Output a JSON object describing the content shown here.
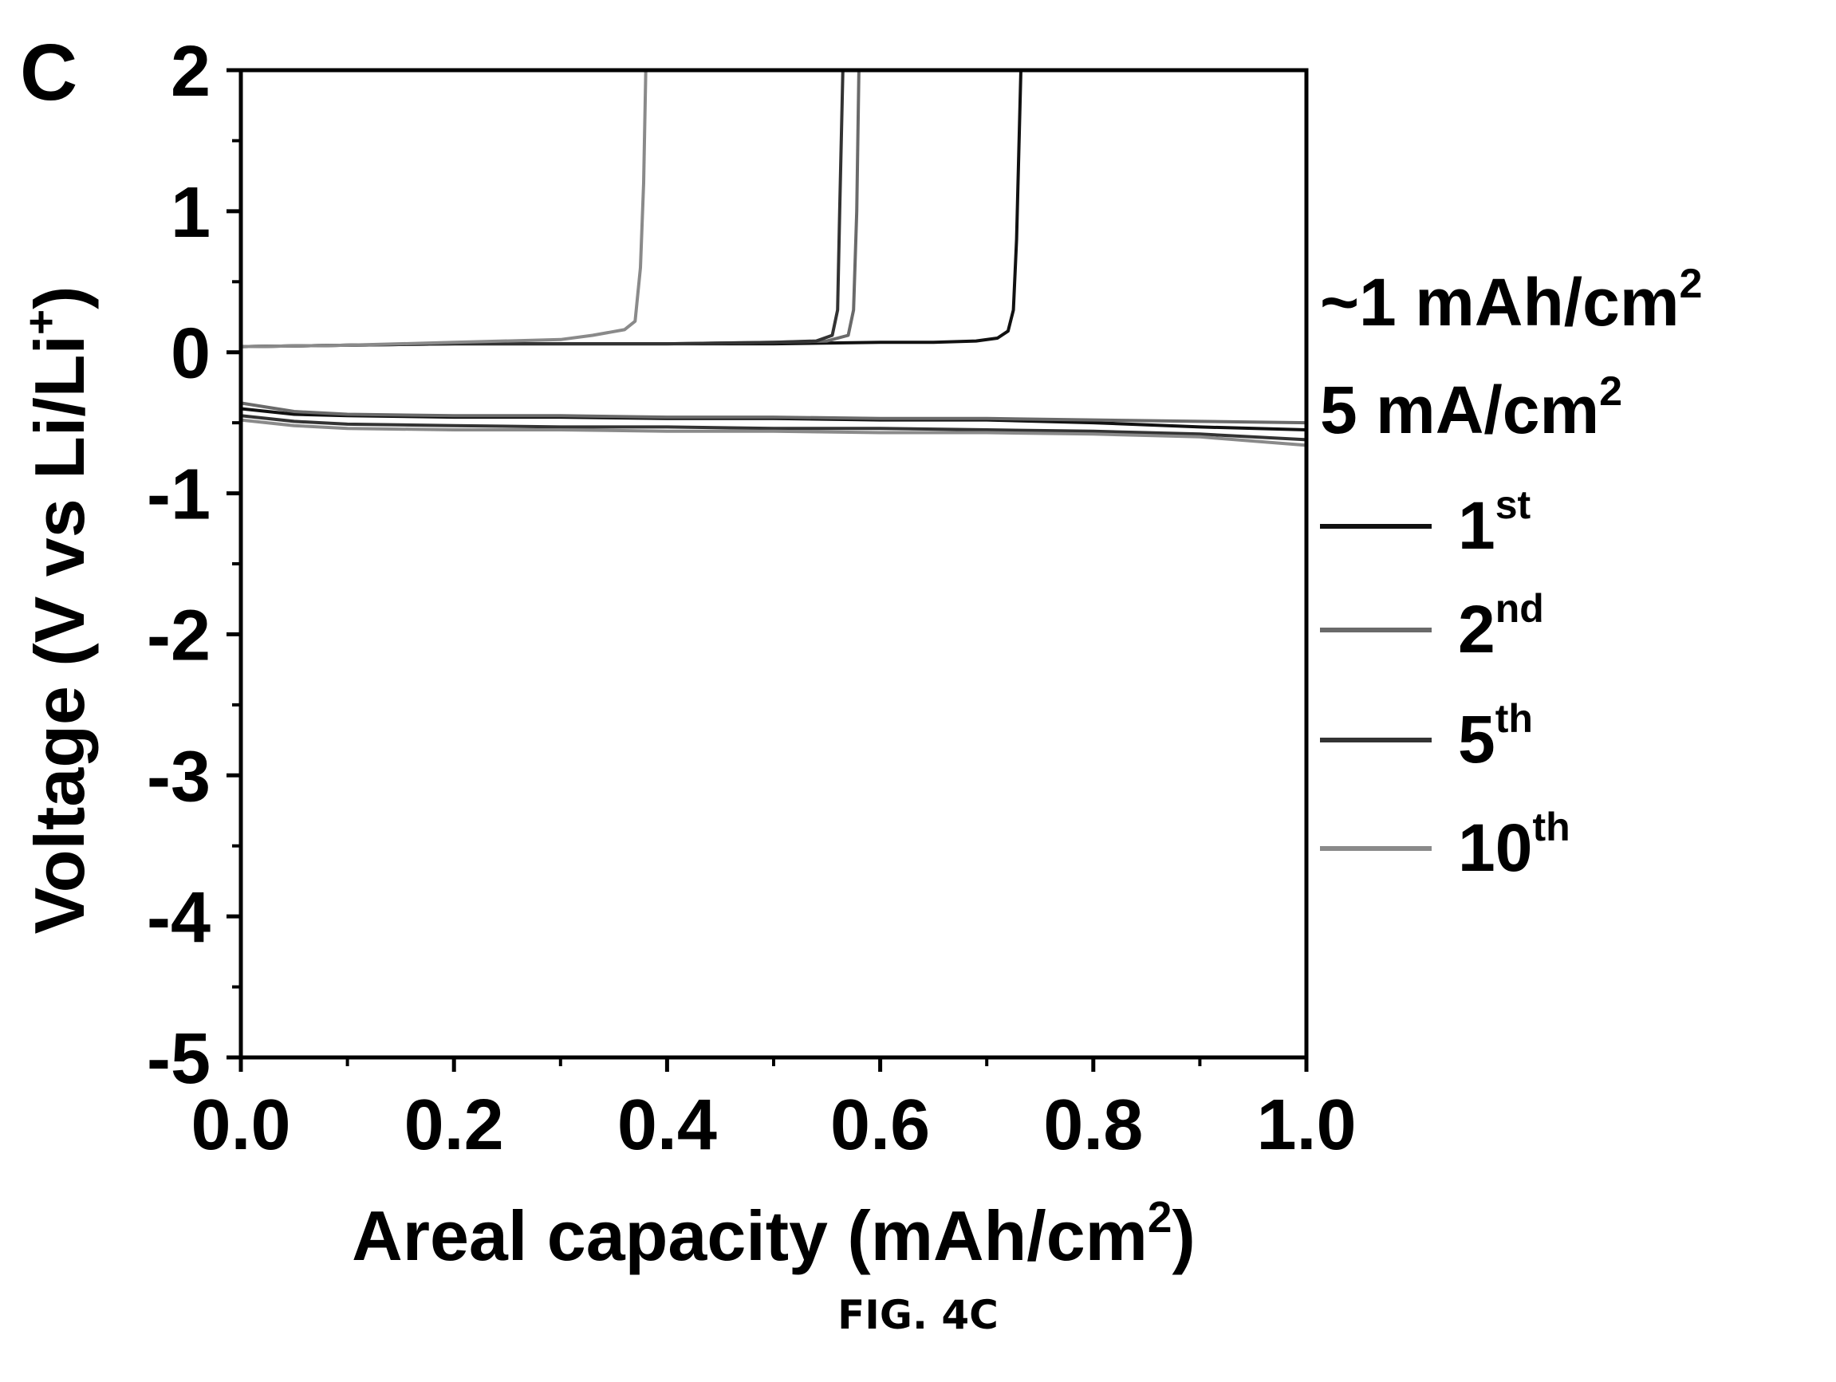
{
  "panel_label": "C",
  "figure_caption": "FIG. 4C",
  "annotations": {
    "capacity_value": "~1 mAh/cm",
    "capacity_sup": "2",
    "current_value": "5 mA/cm",
    "current_sup": "2"
  },
  "chart_data": {
    "type": "line",
    "title": "",
    "xlabel": "Areal capacity (mAh/cm",
    "xlabel_sup": "2",
    "xlabel_tail": ")",
    "ylabel": "Voltage (V vs Li/Li",
    "ylabel_sup": "+",
    "ylabel_tail": ")",
    "xlim": [
      0.0,
      1.0
    ],
    "ylim": [
      -5,
      2
    ],
    "xticks": [
      "0.0",
      "0.2",
      "0.4",
      "0.6",
      "0.8",
      "1.0"
    ],
    "yticks": [
      "2",
      "1",
      "0",
      "-1",
      "-2",
      "-3",
      "-4",
      "-5"
    ],
    "grid": false,
    "legend_position": "right",
    "series": [
      {
        "name": "1",
        "sup": "st",
        "color": "#111111",
        "discharge": [
          [
            0.0,
            -0.4
          ],
          [
            0.05,
            -0.44
          ],
          [
            0.1,
            -0.45
          ],
          [
            0.2,
            -0.46
          ],
          [
            0.3,
            -0.46
          ],
          [
            0.4,
            -0.47
          ],
          [
            0.5,
            -0.47
          ],
          [
            0.6,
            -0.48
          ],
          [
            0.7,
            -0.48
          ],
          [
            0.8,
            -0.5
          ],
          [
            0.9,
            -0.53
          ],
          [
            1.0,
            -0.55
          ]
        ],
        "charge": [
          [
            0.0,
            0.04
          ],
          [
            0.1,
            0.05
          ],
          [
            0.2,
            0.06
          ],
          [
            0.3,
            0.06
          ],
          [
            0.4,
            0.06
          ],
          [
            0.5,
            0.06
          ],
          [
            0.6,
            0.07
          ],
          [
            0.65,
            0.07
          ],
          [
            0.69,
            0.08
          ],
          [
            0.71,
            0.1
          ],
          [
            0.72,
            0.15
          ],
          [
            0.725,
            0.3
          ],
          [
            0.728,
            0.8
          ],
          [
            0.73,
            1.4
          ],
          [
            0.732,
            2.0
          ]
        ]
      },
      {
        "name": "2",
        "sup": "nd",
        "color": "#6a6a6a",
        "discharge": [
          [
            0.0,
            -0.36
          ],
          [
            0.05,
            -0.42
          ],
          [
            0.1,
            -0.44
          ],
          [
            0.2,
            -0.45
          ],
          [
            0.3,
            -0.45
          ],
          [
            0.4,
            -0.46
          ],
          [
            0.5,
            -0.46
          ],
          [
            0.6,
            -0.47
          ],
          [
            0.7,
            -0.47
          ],
          [
            0.8,
            -0.48
          ],
          [
            0.9,
            -0.49
          ],
          [
            1.0,
            -0.5
          ]
        ],
        "charge": [
          [
            0.0,
            0.04
          ],
          [
            0.1,
            0.05
          ],
          [
            0.2,
            0.06
          ],
          [
            0.3,
            0.06
          ],
          [
            0.4,
            0.06
          ],
          [
            0.5,
            0.07
          ],
          [
            0.55,
            0.08
          ],
          [
            0.57,
            0.12
          ],
          [
            0.575,
            0.3
          ],
          [
            0.578,
            1.0
          ],
          [
            0.58,
            2.0
          ]
        ]
      },
      {
        "name": "5",
        "sup": "th",
        "color": "#333333",
        "discharge": [
          [
            0.0,
            -0.45
          ],
          [
            0.05,
            -0.49
          ],
          [
            0.1,
            -0.51
          ],
          [
            0.2,
            -0.52
          ],
          [
            0.3,
            -0.53
          ],
          [
            0.4,
            -0.53
          ],
          [
            0.5,
            -0.54
          ],
          [
            0.6,
            -0.54
          ],
          [
            0.7,
            -0.55
          ],
          [
            0.8,
            -0.56
          ],
          [
            0.9,
            -0.58
          ],
          [
            1.0,
            -0.62
          ]
        ],
        "charge": [
          [
            0.0,
            0.04
          ],
          [
            0.1,
            0.05
          ],
          [
            0.2,
            0.06
          ],
          [
            0.3,
            0.06
          ],
          [
            0.4,
            0.06
          ],
          [
            0.5,
            0.07
          ],
          [
            0.54,
            0.08
          ],
          [
            0.555,
            0.12
          ],
          [
            0.56,
            0.3
          ],
          [
            0.562,
            1.0
          ],
          [
            0.565,
            2.0
          ]
        ]
      },
      {
        "name": "10",
        "sup": "th",
        "color": "#8a8a8a",
        "discharge": [
          [
            0.0,
            -0.48
          ],
          [
            0.05,
            -0.52
          ],
          [
            0.1,
            -0.54
          ],
          [
            0.2,
            -0.55
          ],
          [
            0.3,
            -0.55
          ],
          [
            0.4,
            -0.56
          ],
          [
            0.5,
            -0.56
          ],
          [
            0.6,
            -0.57
          ],
          [
            0.7,
            -0.57
          ],
          [
            0.8,
            -0.58
          ],
          [
            0.9,
            -0.6
          ],
          [
            1.0,
            -0.66
          ]
        ],
        "charge": [
          [
            0.0,
            0.04
          ],
          [
            0.1,
            0.05
          ],
          [
            0.2,
            0.07
          ],
          [
            0.3,
            0.09
          ],
          [
            0.33,
            0.12
          ],
          [
            0.36,
            0.16
          ],
          [
            0.37,
            0.22
          ],
          [
            0.375,
            0.6
          ],
          [
            0.378,
            1.2
          ],
          [
            0.38,
            2.0
          ]
        ]
      }
    ]
  }
}
